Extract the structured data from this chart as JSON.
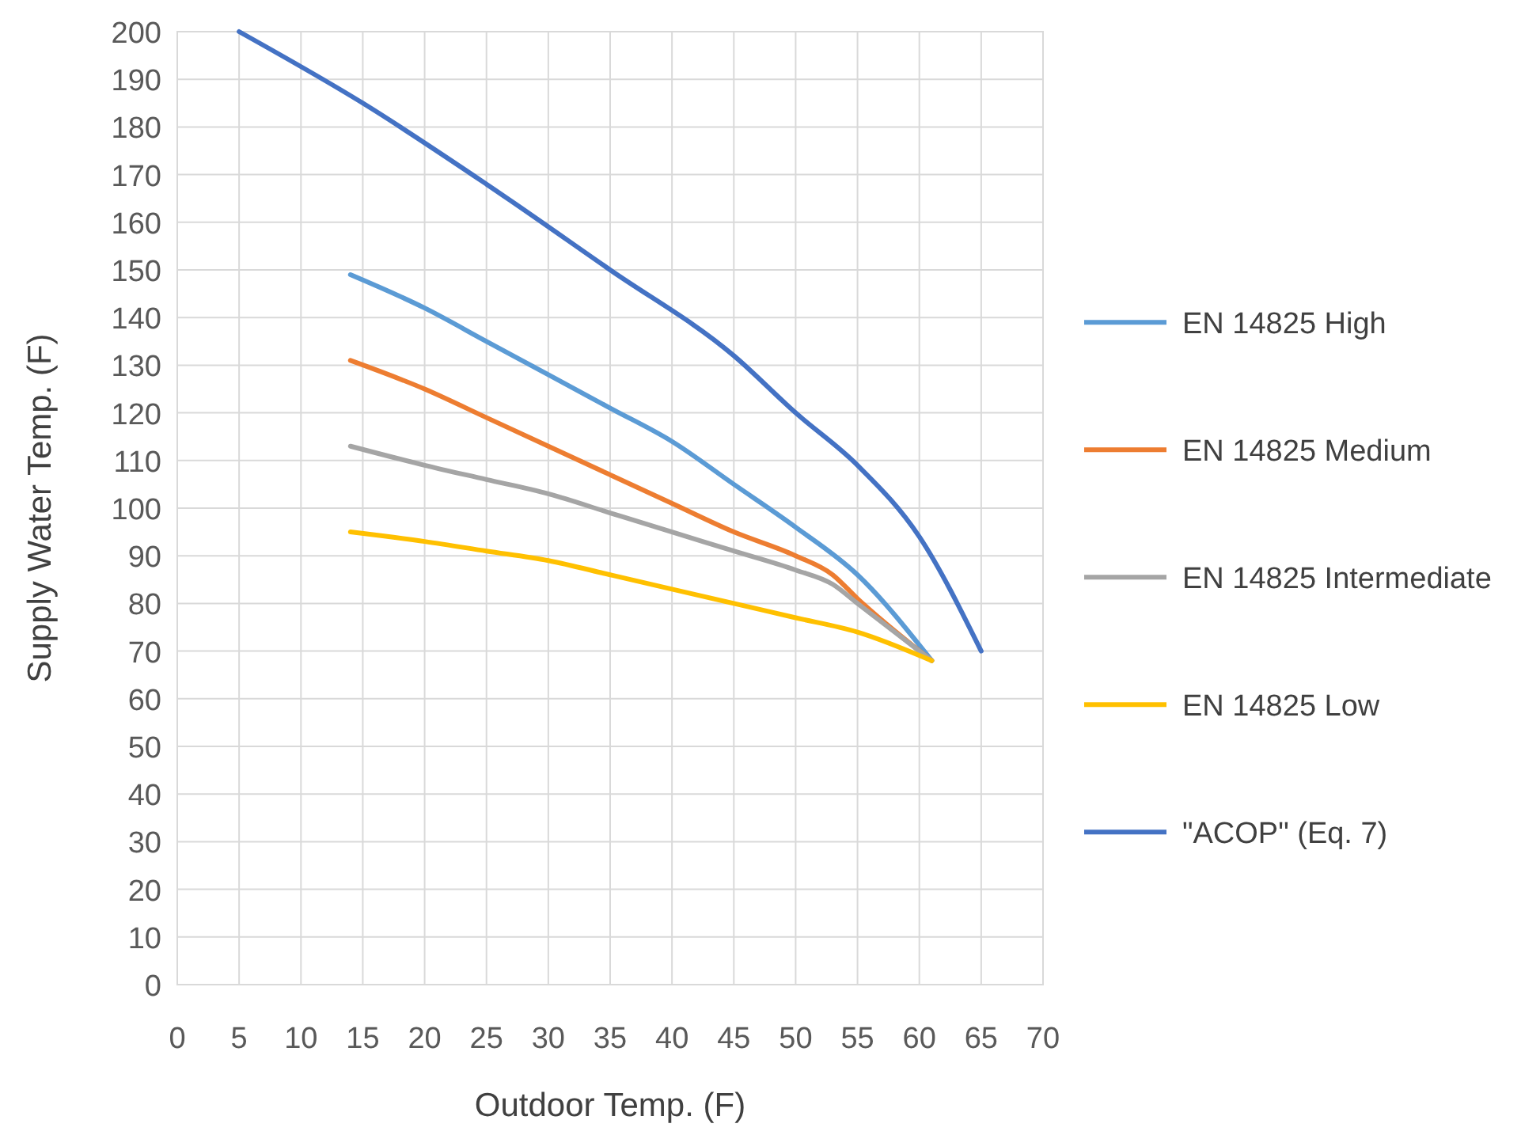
{
  "chart_data": {
    "type": "line",
    "xlabel": "Outdoor Temp. (F)",
    "ylabel": "Supply Water Temp. (F)",
    "xlim": [
      0,
      70
    ],
    "xticks": [
      0,
      5,
      10,
      15,
      20,
      25,
      30,
      35,
      40,
      45,
      50,
      55,
      60,
      65,
      70
    ],
    "ylim": [
      0,
      200
    ],
    "yticks": [
      0,
      10,
      20,
      30,
      40,
      50,
      60,
      70,
      80,
      90,
      100,
      110,
      120,
      130,
      140,
      150,
      160,
      170,
      180,
      190,
      200
    ],
    "grid": true,
    "legend": "right",
    "marker": "none",
    "line_style": "solid",
    "series": [
      {
        "name": "EN 14825 High",
        "color": "#5b9bd5",
        "x": [
          14,
          20,
          25,
          30,
          35,
          40,
          45,
          50,
          55,
          61
        ],
        "values": [
          149,
          142,
          135,
          128,
          121,
          114,
          105,
          96,
          86,
          68
        ]
      },
      {
        "name": "EN 14825 Medium",
        "color": "#ed7d31",
        "x": [
          14,
          20,
          25,
          30,
          35,
          40,
          45,
          50,
          53,
          55,
          61
        ],
        "values": [
          131,
          125,
          119,
          113,
          107,
          101,
          95,
          90,
          86,
          81,
          68
        ]
      },
      {
        "name": "EN 14825 Intermediate",
        "color": "#a5a5a5",
        "x": [
          14,
          20,
          25,
          30,
          35,
          40,
          45,
          50,
          53,
          55,
          61
        ],
        "values": [
          113,
          109,
          106,
          103,
          99,
          95,
          91,
          87,
          84,
          80,
          68
        ]
      },
      {
        "name": "EN 14825 Low",
        "color": "#ffc000",
        "x": [
          14,
          20,
          25,
          30,
          35,
          40,
          45,
          50,
          55,
          61
        ],
        "values": [
          95,
          93,
          91,
          89,
          86,
          83,
          80,
          77,
          74,
          68
        ]
      },
      {
        "name": "\"ACOP\" (Eq. 7)",
        "color": "#4472c4",
        "x": [
          5,
          15,
          25,
          35,
          45,
          50,
          55,
          60,
          65
        ],
        "values": [
          200,
          185,
          168,
          150,
          132,
          120,
          109,
          94,
          70
        ]
      }
    ]
  }
}
